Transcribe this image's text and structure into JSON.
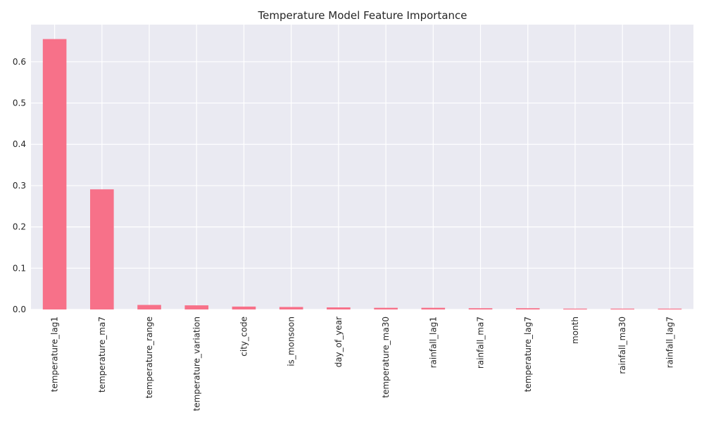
{
  "chart_data": {
    "type": "bar",
    "title": "Temperature Model Feature Importance",
    "xlabel": "",
    "ylabel": "",
    "categories": [
      "temperature_lag1",
      "temperature_ma7",
      "temperature_range",
      "temperature_variation",
      "city_code",
      "is_monsoon",
      "day_of_year",
      "temperature_ma30",
      "rainfall_lag1",
      "rainfall_ma7",
      "temperature_lag7",
      "month",
      "rainfall_ma30",
      "rainfall_lag7"
    ],
    "values": [
      0.655,
      0.291,
      0.011,
      0.01,
      0.007,
      0.006,
      0.005,
      0.004,
      0.004,
      0.003,
      0.003,
      0.002,
      0.002,
      0.002
    ],
    "ylim": [
      0,
      0.69
    ],
    "yticks": [
      "0.0",
      "0.1",
      "0.2",
      "0.3",
      "0.4",
      "0.5",
      "0.6"
    ],
    "grid": true,
    "bar_color": "#f77189",
    "background_color": "#eaeaf2",
    "grid_color": "#ffffff"
  }
}
